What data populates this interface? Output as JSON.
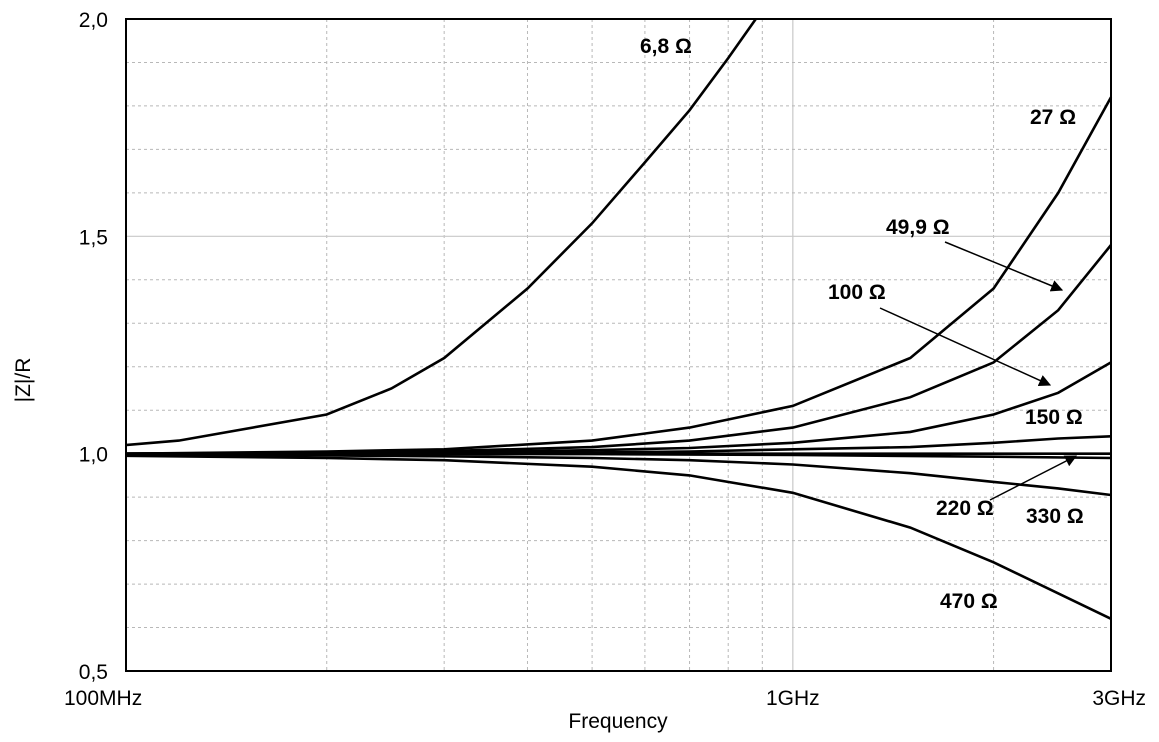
{
  "chart_data": {
    "type": "line",
    "xscale": "log",
    "xlabel": "Frequency",
    "ylabel": "|Z|/R",
    "xlim_hz": [
      100000000,
      3000000000
    ],
    "ylim": [
      0.5,
      2.0
    ],
    "x_tick_labels": [
      {
        "value": 100000000,
        "label": "100MHz"
      },
      {
        "value": 1000000000,
        "label": "1GHz"
      },
      {
        "value": 3000000000,
        "label": "3GHz"
      }
    ],
    "y_tick_labels": [
      {
        "value": 0.5,
        "label": "0,5"
      },
      {
        "value": 1.0,
        "label": "1,0"
      },
      {
        "value": 1.5,
        "label": "1,5"
      },
      {
        "value": 2.0,
        "label": "2,0"
      }
    ],
    "grid": true,
    "series": [
      {
        "name": "6,8 Ω",
        "x": [
          100000000,
          120000000,
          200000000,
          250000000,
          300000000,
          400000000,
          500000000,
          600000000,
          700000000,
          800000000,
          880000000
        ],
        "y": [
          1.02,
          1.03,
          1.09,
          1.15,
          1.22,
          1.38,
          1.53,
          1.67,
          1.79,
          1.91,
          2.0
        ]
      },
      {
        "name": "27 Ω",
        "x": [
          100000000,
          200000000,
          300000000,
          500000000,
          700000000,
          1000000000,
          1500000000,
          2000000000,
          2500000000,
          3000000000
        ],
        "y": [
          1.0,
          1.005,
          1.01,
          1.03,
          1.06,
          1.11,
          1.22,
          1.38,
          1.6,
          1.82
        ]
      },
      {
        "name": "49,9 Ω",
        "x": [
          100000000,
          200000000,
          300000000,
          500000000,
          700000000,
          1000000000,
          1500000000,
          2000000000,
          2500000000,
          3000000000
        ],
        "y": [
          1.0,
          1.003,
          1.006,
          1.015,
          1.03,
          1.06,
          1.13,
          1.21,
          1.33,
          1.48
        ]
      },
      {
        "name": "100 Ω",
        "x": [
          100000000,
          300000000,
          500000000,
          700000000,
          1000000000,
          1500000000,
          2000000000,
          2500000000,
          3000000000
        ],
        "y": [
          1.0,
          1.003,
          1.008,
          1.013,
          1.025,
          1.05,
          1.09,
          1.14,
          1.21
        ]
      },
      {
        "name": "150 Ω",
        "x": [
          100000000,
          300000000,
          500000000,
          700000000,
          1000000000,
          1500000000,
          2000000000,
          2500000000,
          3000000000
        ],
        "y": [
          1.0,
          1.001,
          1.003,
          1.005,
          1.01,
          1.015,
          1.025,
          1.035,
          1.04
        ]
      },
      {
        "name": "220 Ω",
        "x": [
          100000000,
          1000000000,
          3000000000
        ],
        "y": [
          1.0,
          1.0,
          1.0
        ]
      },
      {
        "name": "330 Ω",
        "x": [
          100000000,
          500000000,
          1000000000,
          2000000000,
          3000000000
        ],
        "y": [
          1.0,
          0.999,
          0.997,
          0.993,
          0.99
        ]
      },
      {
        "name": "470 Ω",
        "x": [
          100000000,
          200000000,
          300000000,
          500000000,
          700000000,
          1000000000,
          1500000000,
          2000000000,
          3000000000
        ],
        "y": [
          0.995,
          0.99,
          0.985,
          0.97,
          0.95,
          0.91,
          0.83,
          0.75,
          0.62
        ]
      },
      {
        "name": "",
        "x": [
          100000000,
          200000000,
          300000000,
          500000000,
          700000000,
          1000000000,
          1500000000,
          2000000000,
          2500000000,
          3000000000
        ],
        "y": [
          0.998,
          0.996,
          0.994,
          0.99,
          0.985,
          0.975,
          0.955,
          0.935,
          0.92,
          0.905
        ]
      }
    ],
    "annotations": [
      {
        "text": "6,8 Ω",
        "series": "6,8 Ω",
        "leader": false
      },
      {
        "text": "27 Ω",
        "series": "27 Ω",
        "leader": false
      },
      {
        "text": "49,9 Ω",
        "series": "49,9 Ω",
        "leader": true
      },
      {
        "text": "100 Ω",
        "series": "100 Ω",
        "leader": true
      },
      {
        "text": "150 Ω",
        "series": "150 Ω",
        "leader": false
      },
      {
        "text": "220 Ω",
        "series": "220 Ω",
        "leader": true
      },
      {
        "text": "330 Ω",
        "series": "330 Ω",
        "leader": false
      },
      {
        "text": "470 Ω",
        "series": "470 Ω",
        "leader": false
      }
    ]
  }
}
